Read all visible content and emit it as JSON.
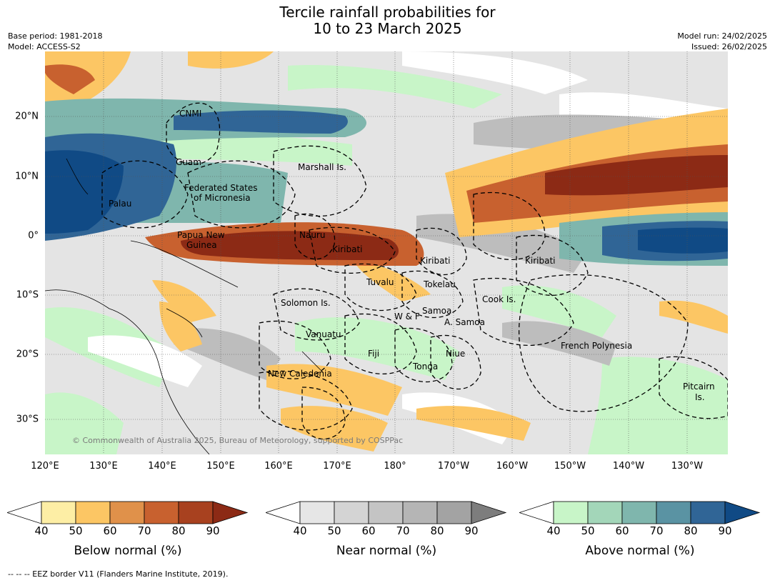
{
  "title_line1": "Tercile rainfall probabilities for",
  "title_line2": "10 to 23 March 2025",
  "base_period": "Base period: 1981-2018",
  "model": "Model: ACCESS-S2",
  "model_run": "Model run: 24/02/2025",
  "issued": "Issued: 26/02/2025",
  "copyright": "© Commonwealth of Australia 2025, Bureau of Meteorology, supported by COSPPac",
  "footer_note": "--  --  -- EEZ border V11 (Flanders Marine Institute, 2019).",
  "lon_ticks": [
    "120°E",
    "130°E",
    "140°E",
    "150°E",
    "160°E",
    "170°E",
    "180°",
    "170°W",
    "160°W",
    "150°W",
    "140°W",
    "130°W"
  ],
  "lat_ticks": [
    "20°N",
    "10°N",
    "0°",
    "10°S",
    "20°S",
    "30°S"
  ],
  "regions": [
    "CNMI",
    "Guam",
    "Marshall Is.",
    "Federated States",
    "of Micronesia",
    "Palau",
    "Papua New",
    "Guinea",
    "Nauru",
    "Kiribati",
    "Kiribati",
    "Kiribati",
    "Tuvalu",
    "Tokelau",
    "Solomon Is.",
    "Samoa",
    "W & F",
    "A. Samoa",
    "Cook Is.",
    "Vanuatu",
    "Fiji",
    "Niue",
    "Tonga",
    "French Polynesia",
    "New Caledonia",
    "Pitcairn",
    "Is."
  ],
  "colorbars": [
    {
      "title": "Below normal (%)",
      "ticks": [
        "40",
        "50",
        "60",
        "70",
        "80",
        "90"
      ],
      "colors": [
        "#ffffff",
        "#fdeea5",
        "#fcc664",
        "#e0914a",
        "#c8612f",
        "#a8411f",
        "#8c2a15"
      ]
    },
    {
      "title": "Near normal (%)",
      "ticks": [
        "40",
        "50",
        "60",
        "70",
        "80",
        "90"
      ],
      "colors": [
        "#ffffff",
        "#e6e6e6",
        "#d4d4d4",
        "#c4c4c4",
        "#b5b5b5",
        "#a3a3a3",
        "#7d7d7d"
      ]
    },
    {
      "title": "Above normal (%)",
      "ticks": [
        "40",
        "50",
        "60",
        "70",
        "80",
        "90"
      ],
      "colors": [
        "#ffffff",
        "#c8f5c8",
        "#a3d6b9",
        "#7fb6ad",
        "#5a93a3",
        "#306596",
        "#104a85"
      ]
    }
  ]
}
